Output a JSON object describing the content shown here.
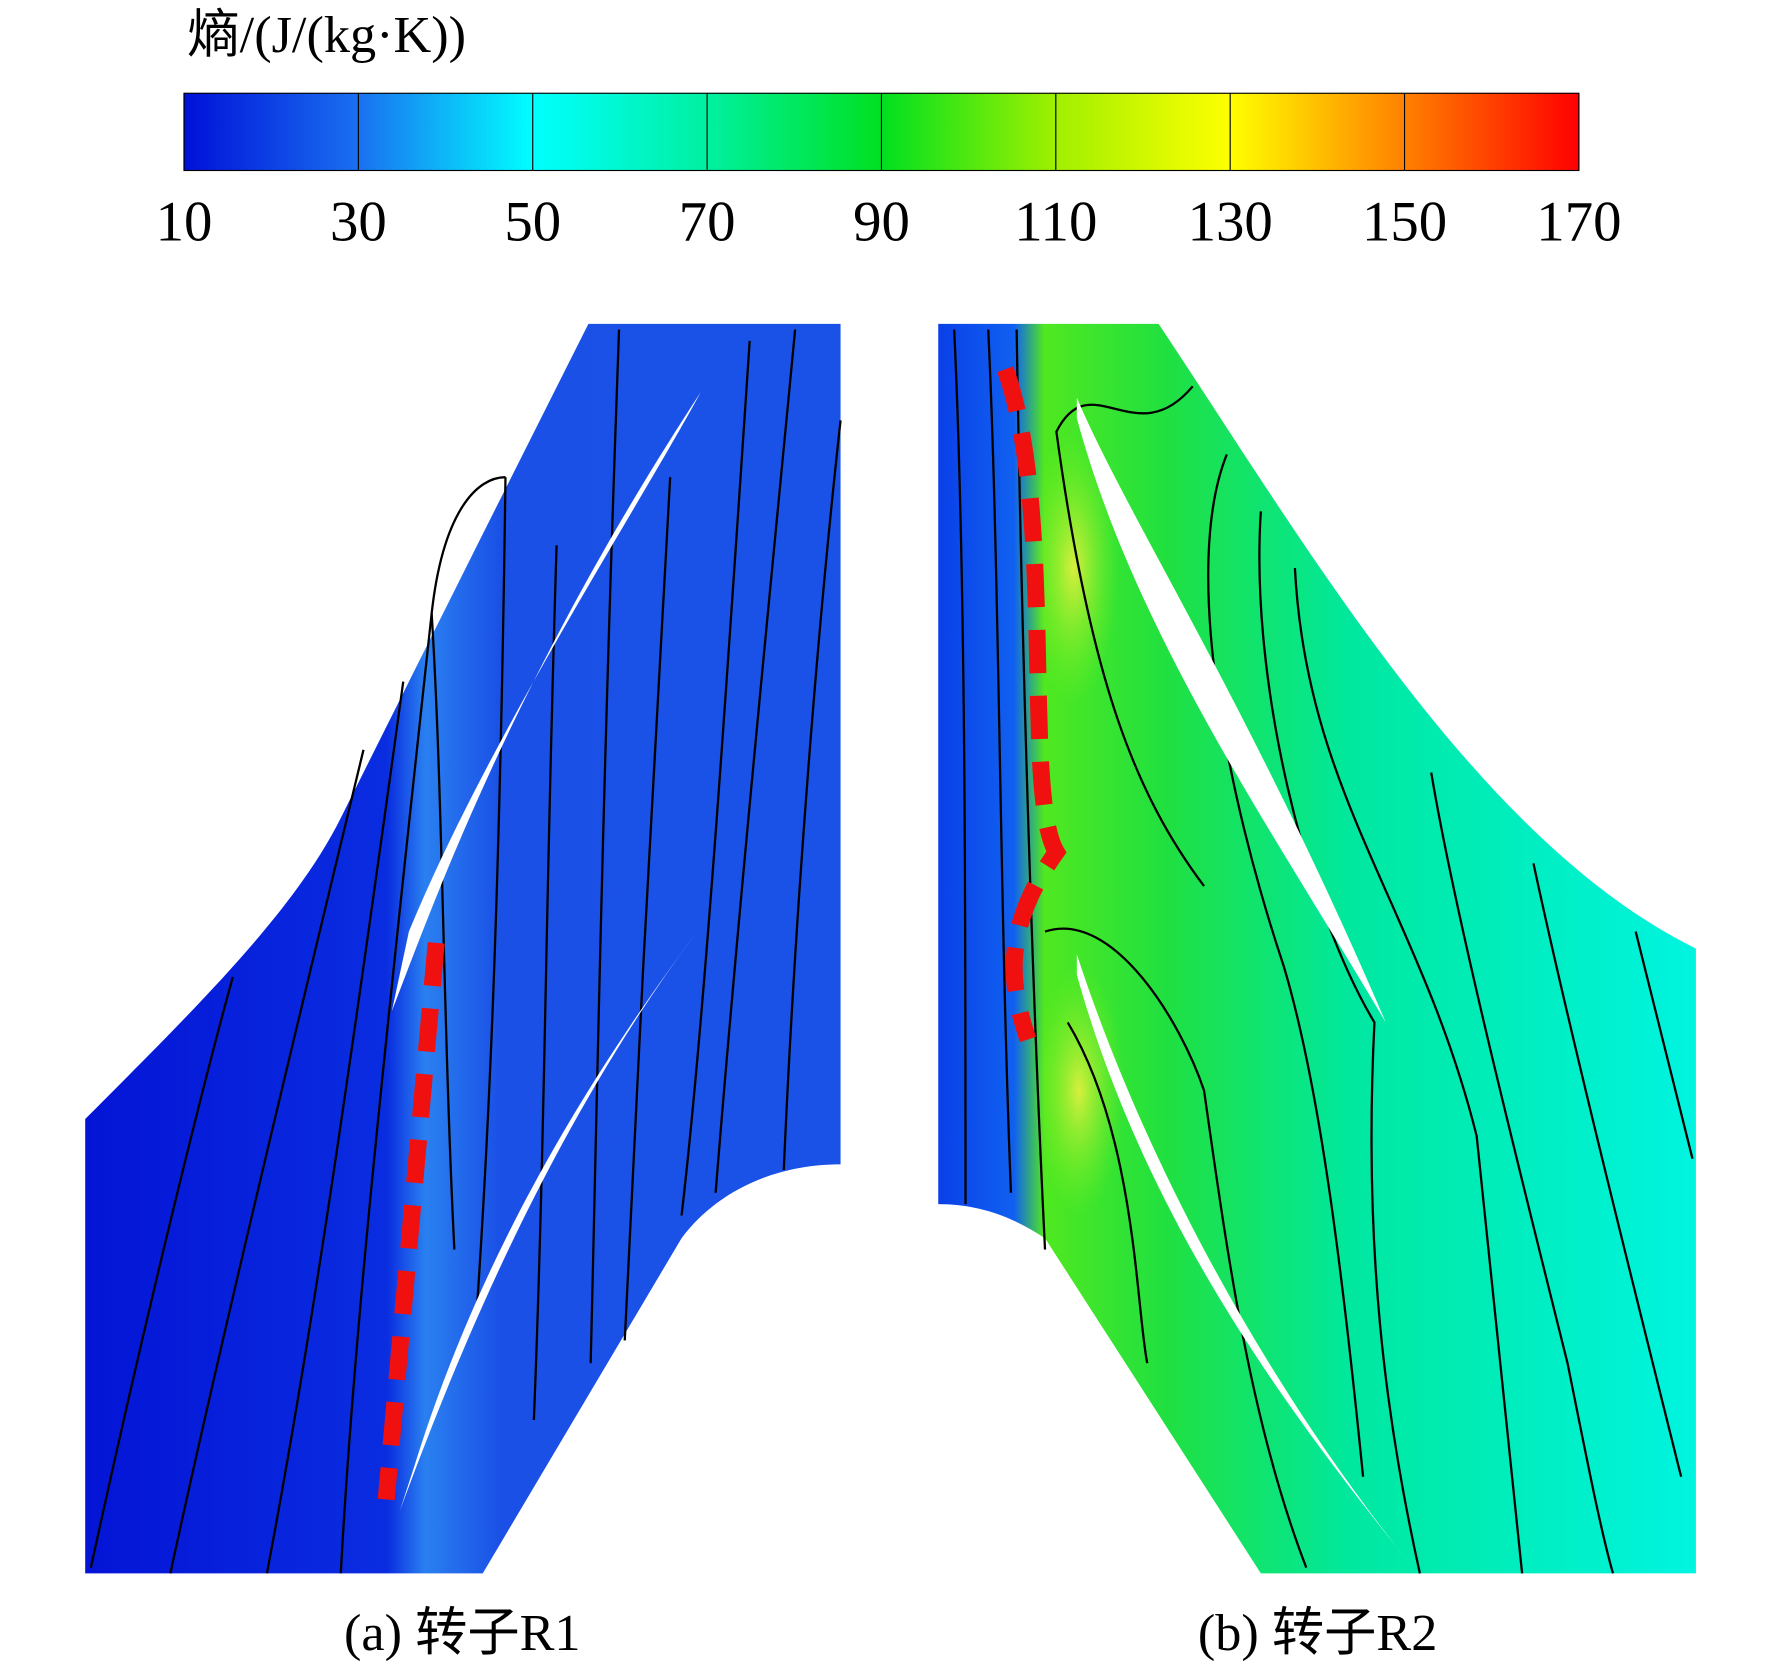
{
  "chart_data": {
    "type": "contour",
    "colorbar": {
      "title": "熵/(J/(kg·K))",
      "lim": [
        10,
        170
      ],
      "ticks": [
        10,
        30,
        50,
        70,
        90,
        110,
        130,
        150,
        170
      ],
      "colors": [
        "#0010d8",
        "#1a70f0",
        "#00ffff",
        "#00f0a0",
        "#00e020",
        "#a0f000",
        "#ffff00",
        "#ff8000",
        "#ff0000"
      ]
    },
    "panels": [
      {
        "caption": "(a) 转子R1"
      },
      {
        "caption": "(b) 转子R2"
      }
    ]
  }
}
